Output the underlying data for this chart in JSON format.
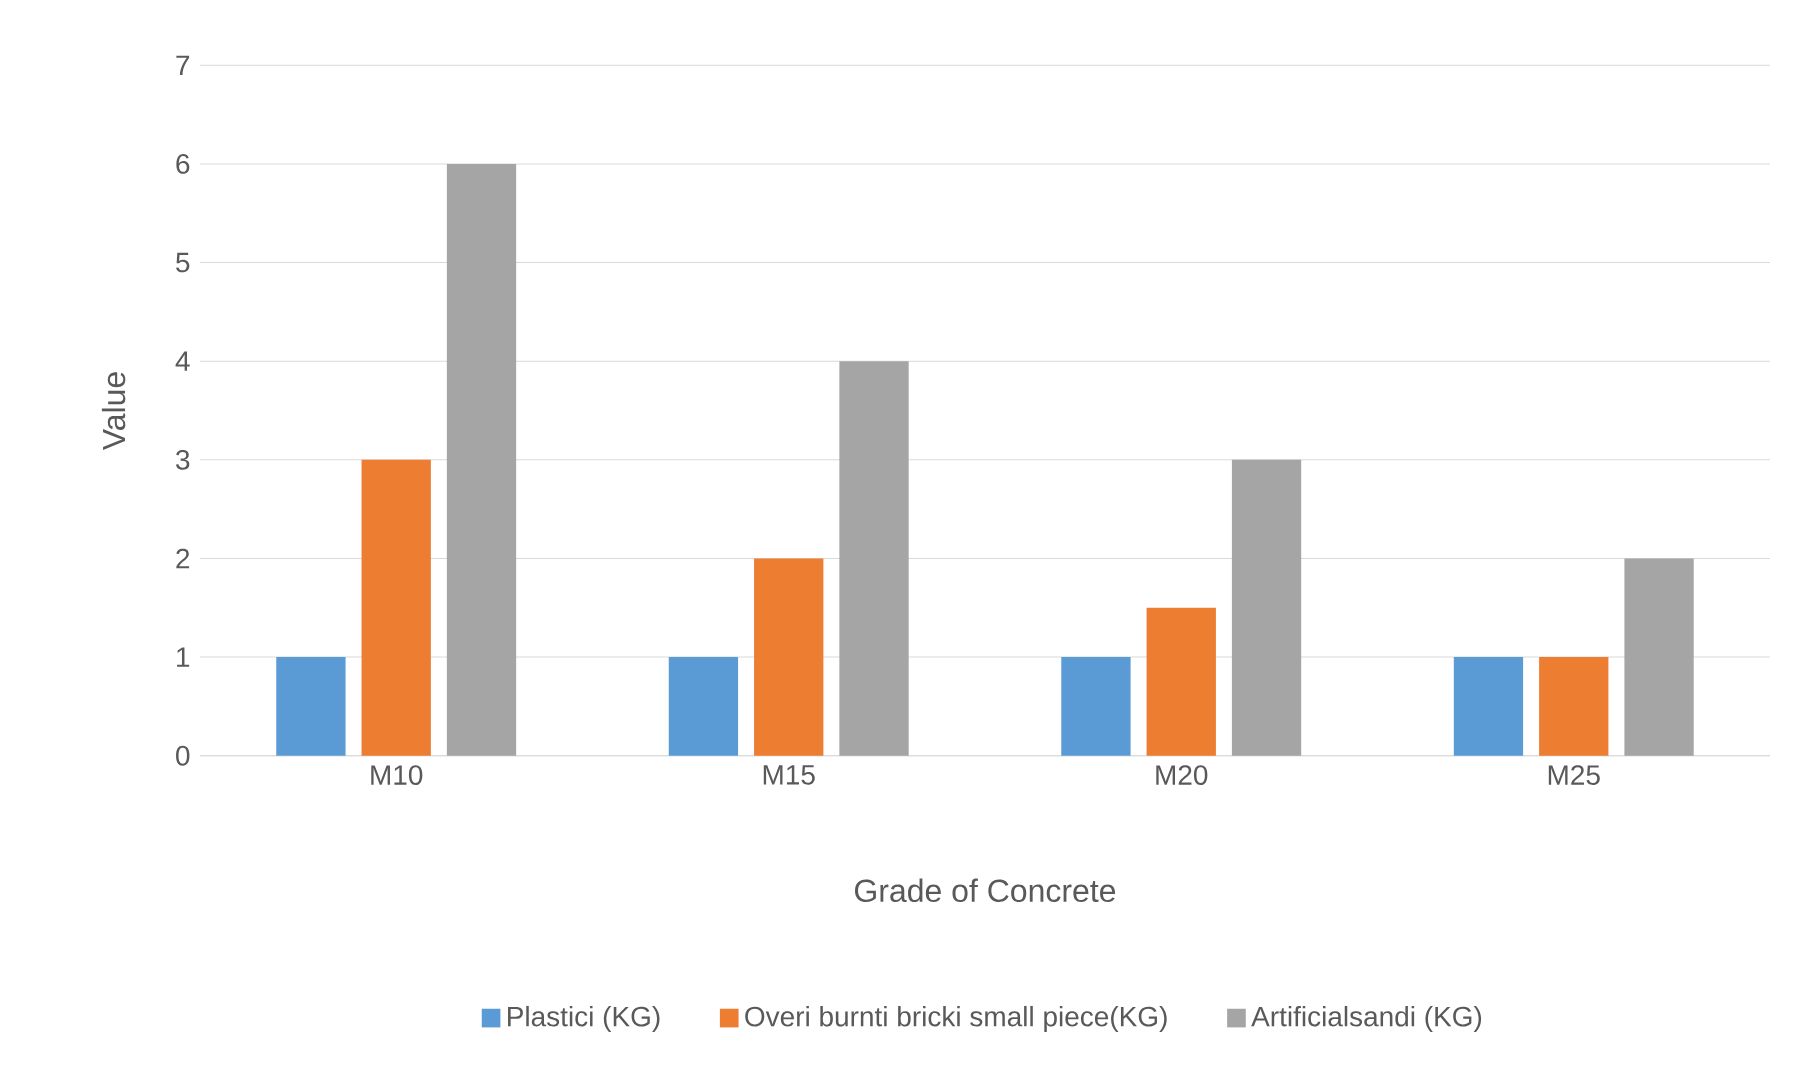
{
  "chart_data": {
    "type": "bar",
    "xlabel": "Grade of Concrete",
    "ylabel": "Value",
    "categories": [
      "M10",
      "M15",
      "M20",
      "M25"
    ],
    "series": [
      {
        "name": "Plastici (KG)",
        "color": "#5b9bd5",
        "values": [
          1,
          1,
          1,
          1
        ]
      },
      {
        "name": "Overi burnti bricki small   piece(KG)",
        "color": "#ed7d31",
        "values": [
          3,
          2,
          1.5,
          1
        ]
      },
      {
        "name": "Artificialsandi (KG)",
        "color": "#a5a5a5",
        "values": [
          6,
          4,
          3,
          2
        ]
      }
    ],
    "ylim": [
      0,
      7
    ],
    "yticks": [
      0,
      1,
      2,
      3,
      4,
      5,
      6,
      7
    ],
    "grid": "y",
    "legend": "bottom"
  }
}
